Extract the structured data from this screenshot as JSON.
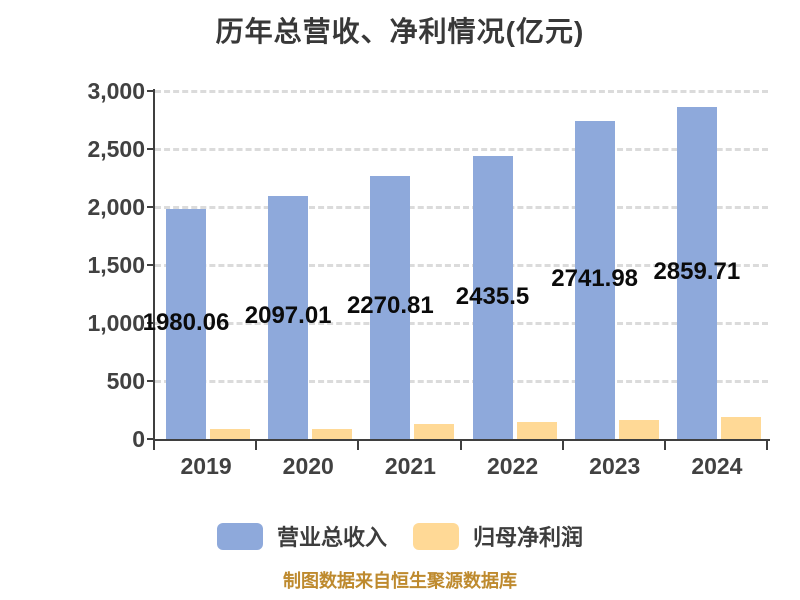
{
  "title": "历年总营收、净利情况(亿元)",
  "footer": "制图数据来自恒生聚源数据库",
  "colors": {
    "revenue_bar": "#8EA9DB",
    "profit_bar": "#FFD996",
    "axis": "#3F3F3F",
    "gridline": "#DBDBDB",
    "value_label": "#0B0B0B",
    "axis_text": "#414141",
    "footer_text": "#BE8A2E",
    "background": "#FFFFFF"
  },
  "legend": [
    {
      "label": "营业总收入",
      "color": "#8EA9DB"
    },
    {
      "label": "归母净利润",
      "color": "#FFD996"
    }
  ],
  "chart_data": {
    "type": "bar",
    "title": "历年总营收、净利情况(亿元)",
    "categories": [
      "2019",
      "2020",
      "2021",
      "2022",
      "2023",
      "2024"
    ],
    "series": [
      {
        "name": "营业总收入",
        "color": "#8EA9DB",
        "values": [
          1980.06,
          2097.01,
          2270.81,
          2435.5,
          2741.98,
          2859.71
        ],
        "labels": [
          "1980.06",
          "2097.01",
          "2270.81",
          "2435.5",
          "2741.98",
          "2859.71"
        ]
      },
      {
        "name": "归母净利润",
        "color": "#FFD996",
        "values": [
          82,
          89,
          130,
          147,
          166,
          187
        ],
        "labels": []
      }
    ],
    "ylim": [
      0,
      3000
    ],
    "ytick_values": [
      3000,
      2500,
      2000,
      1500,
      1000,
      500,
      0
    ],
    "ytick_labels": [
      "3,000",
      "2,500",
      "2,000",
      "1,500",
      "1,000",
      "500",
      "0"
    ],
    "grid": "horizontal-dashed",
    "legend_position": "bottom"
  }
}
